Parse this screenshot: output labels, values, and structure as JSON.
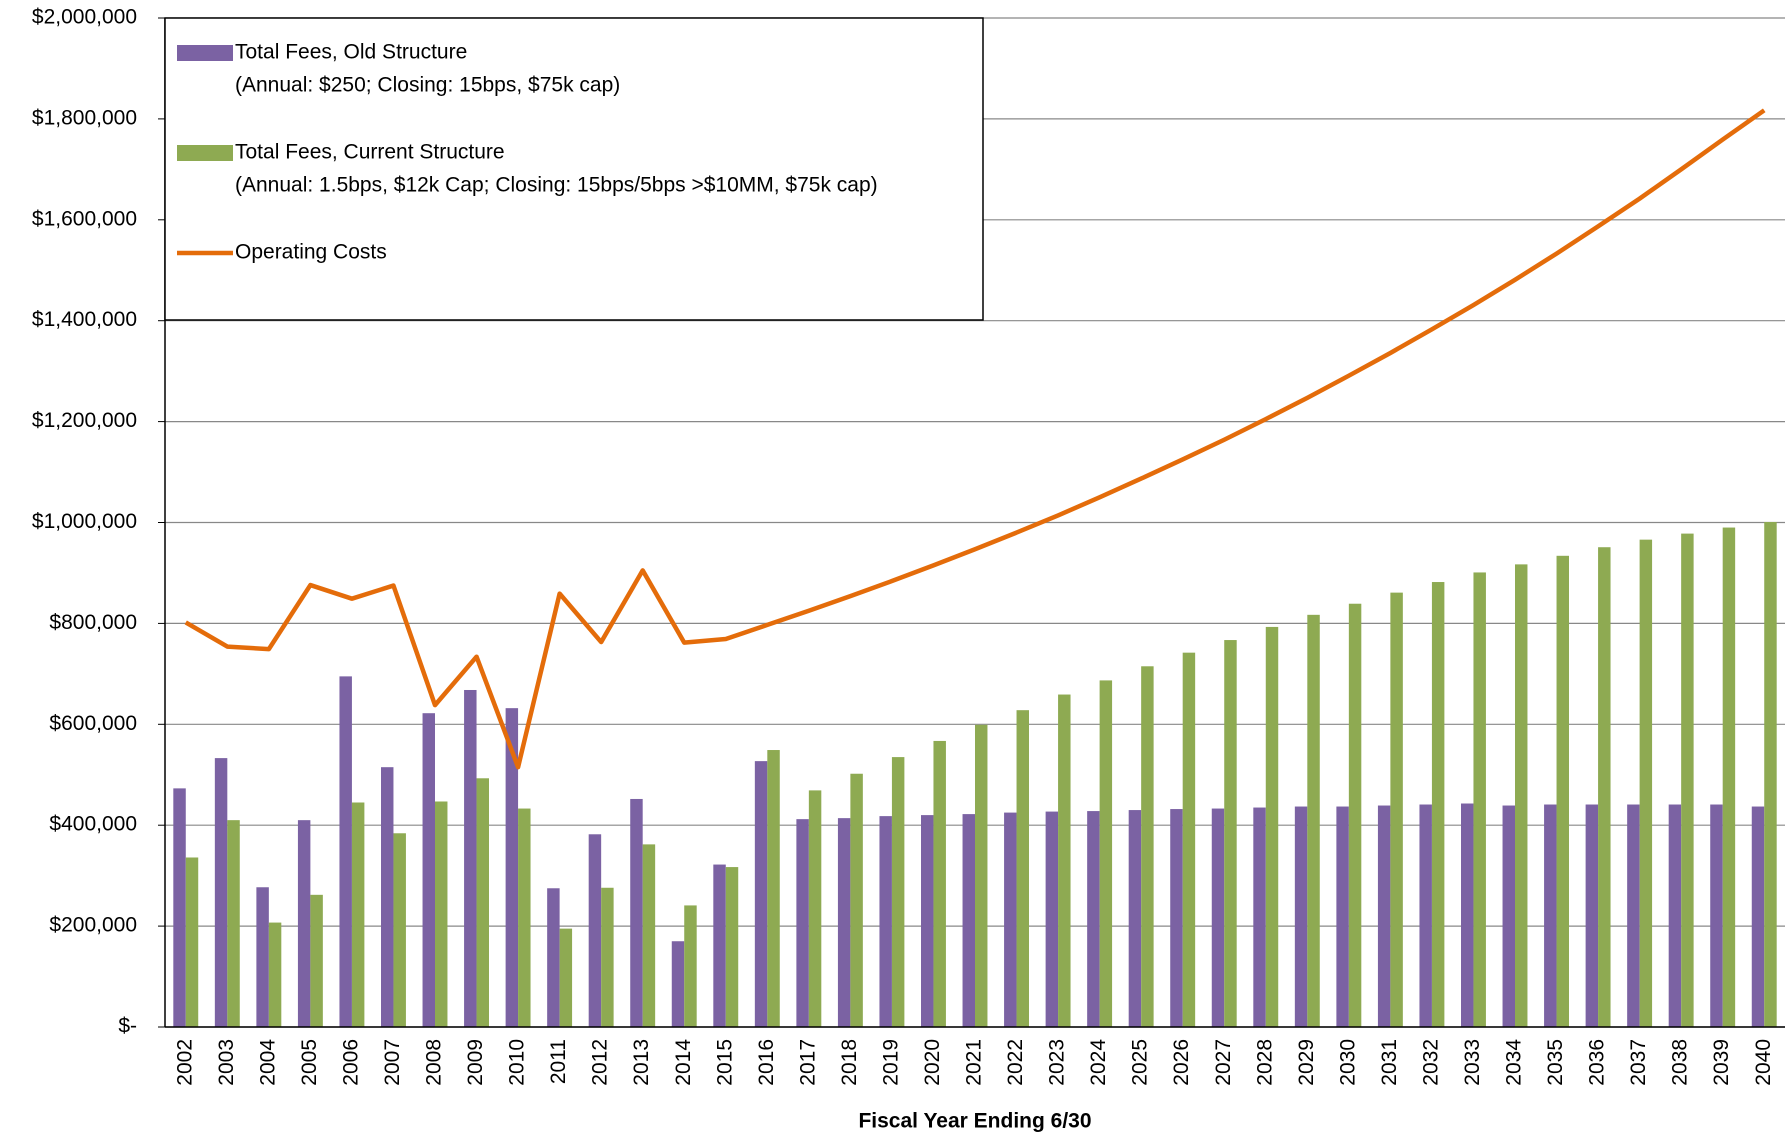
{
  "chart_data": {
    "type": "bar_line",
    "x_label": "Fiscal Year Ending 6/30",
    "categories": [
      "2002",
      "2003",
      "2004",
      "2005",
      "2006",
      "2007",
      "2008",
      "2009",
      "2010",
      "2011",
      "2012",
      "2013",
      "2014",
      "2015",
      "2016",
      "2017",
      "2018",
      "2019",
      "2020",
      "2021",
      "2022",
      "2023",
      "2024",
      "2025",
      "2026",
      "2027",
      "2028",
      "2029",
      "2030",
      "2031",
      "2032",
      "2033",
      "2034",
      "2035",
      "2036",
      "2037",
      "2038",
      "2039",
      "2040"
    ],
    "series": [
      {
        "name": "Total Fees, Old Structure",
        "description": "(Annual: $250; Closing: 15bps, $75k cap)",
        "kind": "bar",
        "color": "#7b62a3",
        "values": [
          473000,
          533000,
          277000,
          410000,
          695000,
          515000,
          622000,
          668000,
          632000,
          275000,
          382000,
          452000,
          170000,
          322000,
          527000,
          412000,
          414000,
          418000,
          420000,
          422000,
          425000,
          427000,
          428000,
          430000,
          432000,
          433000,
          435000,
          437000,
          437000,
          439000,
          441000,
          443000,
          439000,
          441000,
          441000,
          441000,
          441000,
          441000,
          437000
        ]
      },
      {
        "name": "Total Fees, Current Structure",
        "description": "(Annual: 1.5bps, $12k Cap; Closing: 15bps/5bps >$10MM, $75k cap)",
        "kind": "bar",
        "color": "#8eaa52",
        "values": [
          336000,
          410000,
          207000,
          262000,
          445000,
          384000,
          447000,
          493000,
          433000,
          195000,
          276000,
          362000,
          241000,
          317000,
          549000,
          469000,
          502000,
          535000,
          567000,
          599000,
          628000,
          659000,
          687000,
          715000,
          742000,
          767000,
          793000,
          817000,
          839000,
          861000,
          882000,
          901000,
          917000,
          934000,
          951000,
          966000,
          978000,
          990000,
          1001000
        ]
      },
      {
        "name": "Operating Costs",
        "kind": "line",
        "color": "#e46c0a",
        "values": [
          802000,
          754000,
          749000,
          876000,
          849000,
          875000,
          638000,
          734000,
          515000,
          859000,
          763000,
          905000,
          762000,
          769000,
          797000,
          825000,
          854000,
          884000,
          915000,
          947000,
          980000,
          1014000,
          1050000,
          1087000,
          1125000,
          1164000,
          1205000,
          1247000,
          1291000,
          1336000,
          1383000,
          1431000,
          1481000,
          1533000,
          1587000,
          1642000,
          1700000,
          1759000,
          1817000
        ]
      }
    ],
    "ylim": [
      0,
      2000000
    ],
    "yticks": [
      {
        "value": 0,
        "label": "$-"
      },
      {
        "value": 200000,
        "label": "$200,000"
      },
      {
        "value": 400000,
        "label": "$400,000"
      },
      {
        "value": 600000,
        "label": "$600,000"
      },
      {
        "value": 800000,
        "label": "$800,000"
      },
      {
        "value": 1000000,
        "label": "$1,000,000"
      },
      {
        "value": 1200000,
        "label": "$1,200,000"
      },
      {
        "value": 1400000,
        "label": "$1,400,000"
      },
      {
        "value": 1600000,
        "label": "$1,600,000"
      },
      {
        "value": 1800000,
        "label": "$1,800,000"
      },
      {
        "value": 2000000,
        "label": "$2,000,000"
      }
    ],
    "grid": true,
    "legend": "upper left"
  }
}
